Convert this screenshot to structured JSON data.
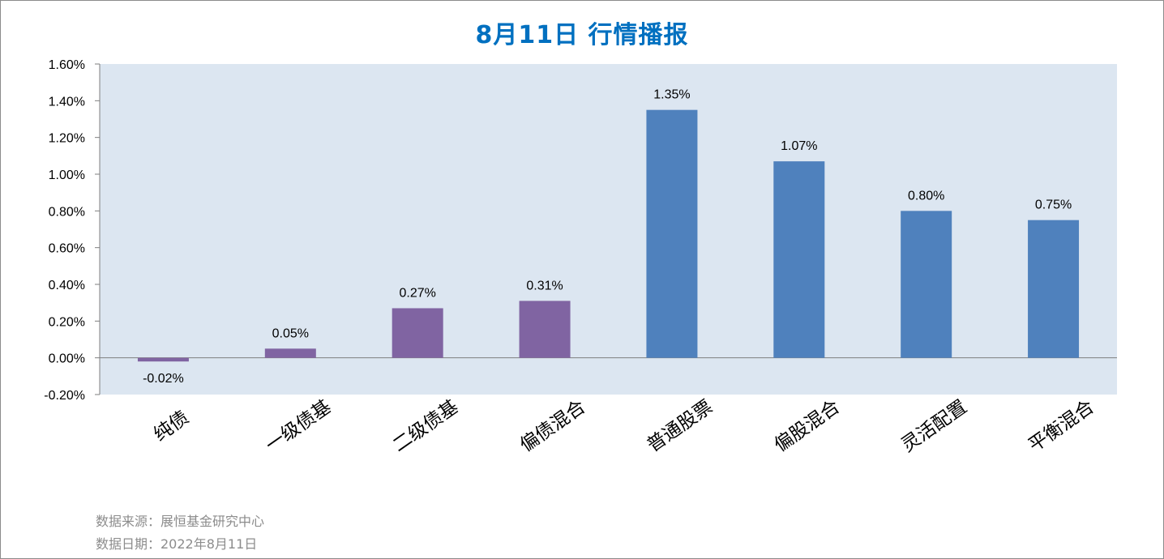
{
  "title": "8月11日  行情播报",
  "footer": {
    "source": "数据来源：展恒基金研究中心",
    "date": "数据日期：2022年8月11日"
  },
  "colors": {
    "plot_bg": "#dce6f1",
    "bond_bar": "#8064a2",
    "equity_bar": "#4f81bd",
    "title": "#0070c0"
  },
  "chart_data": {
    "type": "bar",
    "title": "8月11日  行情播报",
    "categories": [
      "纯债",
      "一级债基",
      "二级债基",
      "偏债混合",
      "普通股票",
      "偏股混合",
      "灵活配置",
      "平衡混合"
    ],
    "values": [
      -0.02,
      0.05,
      0.27,
      0.31,
      1.35,
      1.07,
      0.8,
      0.75
    ],
    "value_labels": [
      "-0.02%",
      "0.05%",
      "0.27%",
      "0.31%",
      "1.35%",
      "1.07%",
      "0.80%",
      "0.75%"
    ],
    "bar_colors": [
      "#8064a2",
      "#8064a2",
      "#8064a2",
      "#8064a2",
      "#4f81bd",
      "#4f81bd",
      "#4f81bd",
      "#4f81bd"
    ],
    "yticks": [
      "1.60%",
      "1.40%",
      "1.20%",
      "1.00%",
      "0.80%",
      "0.60%",
      "0.40%",
      "0.20%",
      "0.00%",
      "-0.20%"
    ],
    "ylim": [
      -0.2,
      1.6
    ],
    "unit": "%",
    "xlabel": "",
    "ylabel": "",
    "grid": false,
    "legend": "none"
  }
}
